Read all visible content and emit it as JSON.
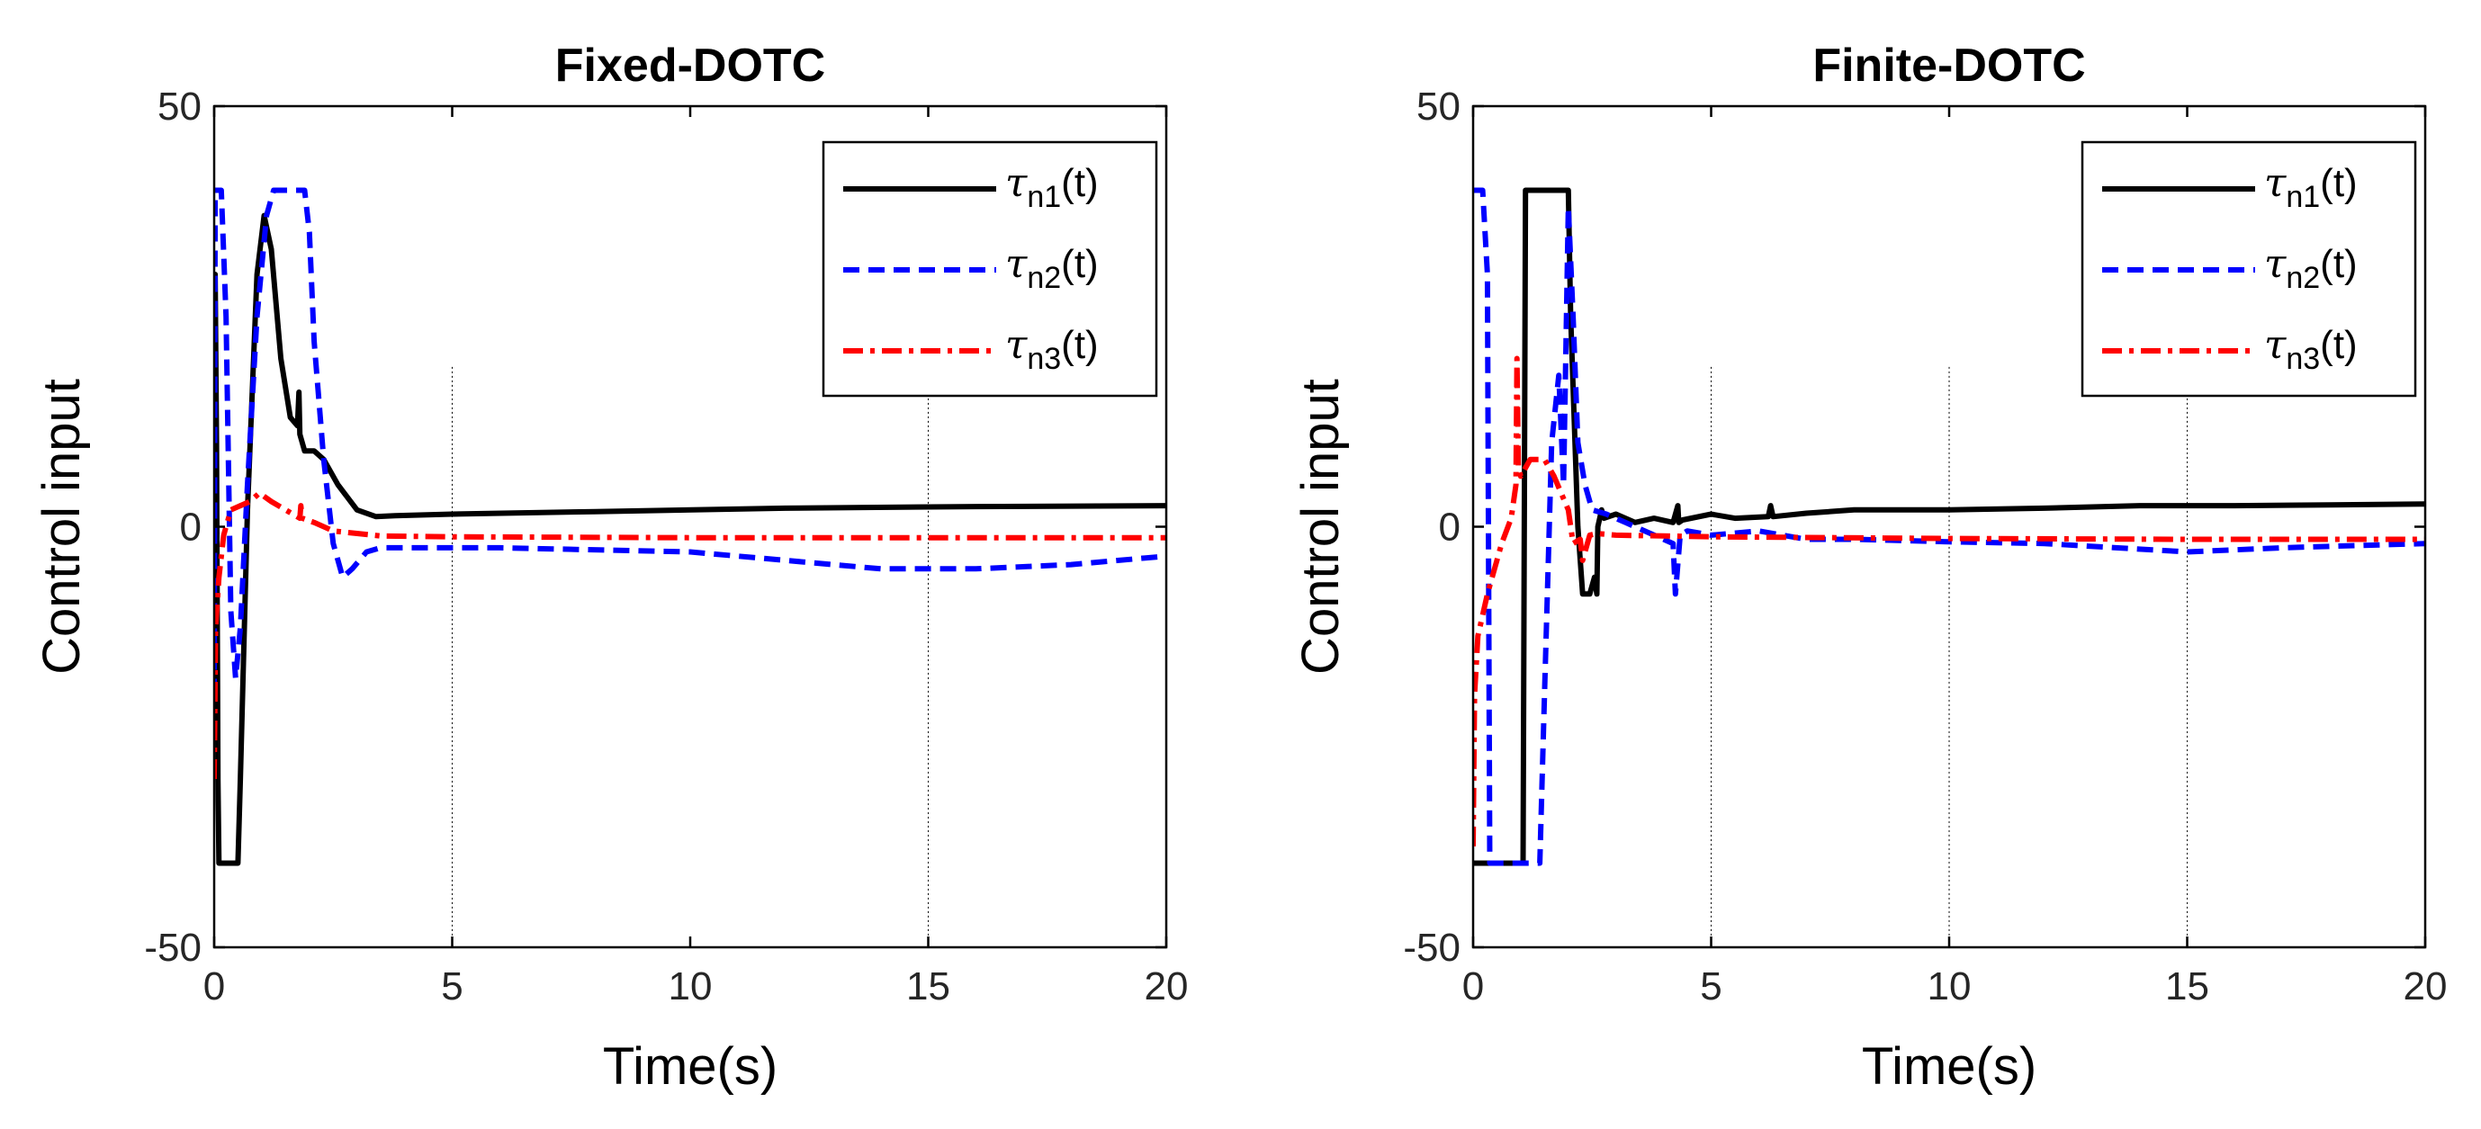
{
  "chart_data": [
    {
      "type": "line",
      "title": "Fixed-DOTC",
      "xlabel": "Time(s)",
      "ylabel": "Control input",
      "xlim": [
        0,
        20
      ],
      "ylim": [
        -50,
        50
      ],
      "xticks": [
        0,
        5,
        10,
        15,
        20
      ],
      "yticks": [
        -50,
        0,
        50
      ],
      "xtick_labels": [
        "0",
        "5",
        "10",
        "15",
        "20"
      ],
      "ytick_labels": [
        "-50",
        "0",
        "50"
      ],
      "grid_x": [
        5,
        15
      ],
      "legend": "top-right",
      "series": [
        {
          "name": "τn1(t)",
          "legend_symbol": "τ",
          "legend_sub": "n1",
          "legend_suffix": "(t)",
          "color": "#000000",
          "dash": "",
          "x": [
            0,
            0.02,
            0.05,
            0.08,
            0.1,
            0.5,
            0.55,
            0.7,
            0.9,
            1.05,
            1.2,
            1.4,
            1.6,
            1.75,
            1.78,
            1.8,
            1.9,
            2.1,
            2.3,
            2.6,
            3.0,
            3.4,
            3.8,
            5,
            8,
            12,
            16,
            20
          ],
          "y": [
            0,
            30,
            10,
            -30,
            -40,
            -40,
            -30,
            2,
            30,
            37,
            33,
            20,
            13,
            12,
            16,
            11,
            9,
            9,
            8,
            5,
            2,
            1.2,
            1.3,
            1.5,
            1.8,
            2.2,
            2.4,
            2.5
          ]
        },
        {
          "name": "τn2(t)",
          "legend_symbol": "τ",
          "legend_sub": "n2",
          "legend_suffix": "(t)",
          "color": "#0000ff",
          "dash": "18 10",
          "x": [
            0,
            0.02,
            0.15,
            0.25,
            0.35,
            0.45,
            0.55,
            0.7,
            0.9,
            1.1,
            1.25,
            1.9,
            2.0,
            2.1,
            2.3,
            2.5,
            2.7,
            2.9,
            3.2,
            3.5,
            4,
            6,
            10,
            14,
            16,
            18,
            20
          ],
          "y": [
            -20,
            40,
            40,
            25,
            -10,
            -18,
            -12,
            5,
            25,
            37,
            40,
            40,
            35,
            22,
            8,
            -2,
            -6,
            -5,
            -3,
            -2.5,
            -2.5,
            -2.5,
            -3,
            -5,
            -5,
            -4.5,
            -3.5
          ]
        },
        {
          "name": "τn3(t)",
          "legend_symbol": "τ",
          "legend_sub": "n3",
          "legend_suffix": "(t)",
          "color": "#ff0000",
          "dash": "22 8 5 8",
          "x": [
            0,
            0.03,
            0.1,
            0.2,
            0.35,
            0.55,
            0.75,
            0.95,
            1.2,
            1.5,
            1.8,
            1.82,
            1.85,
            2.1,
            2.5,
            3.0,
            3.5,
            5,
            10,
            15,
            20
          ],
          "y": [
            -30,
            -12,
            -6,
            -1,
            2,
            2.5,
            3,
            4,
            3,
            2,
            1,
            2.5,
            1,
            0.5,
            -0.5,
            -0.8,
            -1.1,
            -1.2,
            -1.3,
            -1.3,
            -1.3
          ]
        }
      ]
    },
    {
      "type": "line",
      "title": "Finite-DOTC",
      "xlabel": "Time(s)",
      "ylabel": "Control input",
      "xlim": [
        0,
        20
      ],
      "ylim": [
        -50,
        50
      ],
      "xticks": [
        0,
        5,
        10,
        15,
        20
      ],
      "yticks": [
        -50,
        0,
        50
      ],
      "xtick_labels": [
        "0",
        "5",
        "10",
        "15",
        "20"
      ],
      "ytick_labels": [
        "-50",
        "0",
        "50"
      ],
      "grid_x": [
        5,
        10,
        15
      ],
      "legend": "top-right",
      "series": [
        {
          "name": "τn1(t)",
          "legend_symbol": "τ",
          "legend_sub": "n1",
          "legend_suffix": "(t)",
          "color": "#000000",
          "dash": "",
          "x": [
            0,
            1.05,
            1.1,
            1.2,
            2.0,
            2.05,
            2.2,
            2.3,
            2.45,
            2.55,
            2.6,
            2.62,
            2.7,
            2.75,
            3.0,
            3.4,
            3.8,
            4.2,
            4.3,
            4.32,
            4.4,
            5.0,
            5.5,
            6.2,
            6.25,
            6.3,
            7,
            8,
            10,
            12,
            14,
            16,
            18,
            20
          ],
          "y": [
            -40,
            -40,
            40,
            40,
            40,
            25,
            0,
            -8,
            -8,
            -6,
            -8,
            0,
            2,
            1,
            1.5,
            0.5,
            1,
            0.5,
            2.5,
            0.5,
            0.8,
            1.5,
            1,
            1.2,
            2.5,
            1.2,
            1.6,
            2,
            2,
            2.2,
            2.5,
            2.5,
            2.6,
            2.7
          ]
        },
        {
          "name": "τn2(t)",
          "legend_symbol": "τ",
          "legend_sub": "n2",
          "legend_suffix": "(t)",
          "color": "#0000ff",
          "dash": "18 10",
          "x": [
            0,
            0.2,
            0.3,
            0.35,
            1.4,
            1.5,
            1.65,
            1.8,
            1.9,
            2.0,
            2.1,
            2.2,
            2.35,
            2.5,
            2.8,
            3.2,
            4.0,
            4.2,
            4.25,
            4.35,
            4.5,
            5,
            6,
            7,
            8,
            10,
            12,
            15,
            17,
            20
          ],
          "y": [
            40,
            40,
            30,
            -40,
            -40,
            -20,
            10,
            18,
            5,
            38,
            25,
            10,
            5,
            2,
            1.5,
            0.5,
            -1.5,
            -2,
            -8,
            -1,
            -0.5,
            -1,
            -0.5,
            -1.5,
            -1.5,
            -1.8,
            -2,
            -3,
            -2.5,
            -2
          ]
        },
        {
          "name": "τn3(t)",
          "legend_symbol": "τ",
          "legend_sub": "n3",
          "legend_suffix": "(t)",
          "color": "#ff0000",
          "dash": "22 8 5 8",
          "x": [
            0,
            0.03,
            0.1,
            0.3,
            0.6,
            0.8,
            0.9,
            0.92,
            0.95,
            1.0,
            1.2,
            1.5,
            1.7,
            2.0,
            2.1,
            2.25,
            2.3,
            2.45,
            2.6,
            3,
            5,
            10,
            15,
            20
          ],
          "y": [
            -38,
            -20,
            -13,
            -8,
            -2,
            1,
            5,
            20,
            7,
            6,
            8,
            8,
            6,
            2,
            -2,
            -1.5,
            -4,
            -1,
            -0.8,
            -1,
            -1.2,
            -1.4,
            -1.5,
            -1.5
          ]
        }
      ]
    }
  ]
}
